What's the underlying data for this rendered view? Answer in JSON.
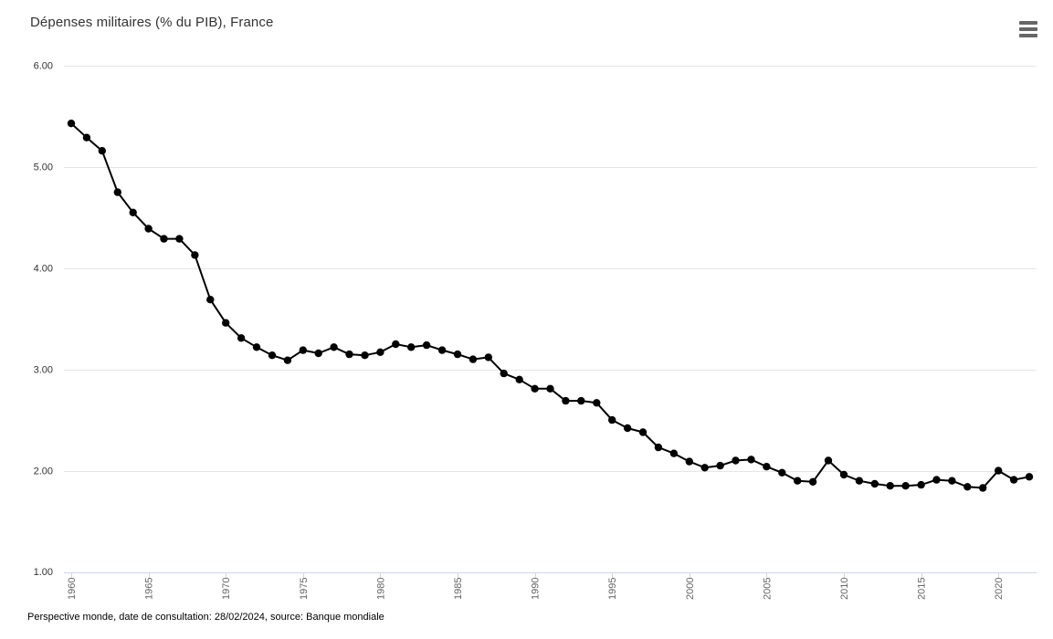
{
  "header": {
    "title": "Dépenses militaires (% du PIB), France"
  },
  "menu": {
    "icon": "hamburger-menu-icon"
  },
  "footer": {
    "caption": "Perspective monde, date de consultation: 28/02/2024, source: Banque mondiale"
  },
  "colors": {
    "background": "#ffffff",
    "series_line": "#000000",
    "marker_fill": "#000000",
    "gridline": "#e6e6e6",
    "axis_line": "#ccd6eb",
    "x_label": "#666666",
    "y_label": "#333333",
    "title_text": "#333333",
    "menu_icon": "#666666",
    "caption_text": "#000000"
  },
  "chart_data": {
    "type": "line",
    "title": "Dépenses militaires (% du PIB), France",
    "xlabel": "",
    "ylabel": "",
    "ylim": [
      1.0,
      6.0
    ],
    "y_ticks": [
      1.0,
      2.0,
      3.0,
      4.0,
      5.0,
      6.0
    ],
    "y_tick_labels": [
      "1.00",
      "2.00",
      "3.00",
      "4.00",
      "5.00",
      "6.00"
    ],
    "x_ticks": [
      1960,
      1965,
      1970,
      1975,
      1980,
      1985,
      1990,
      1995,
      2000,
      2005,
      2010,
      2015,
      2020
    ],
    "grid": true,
    "legend": false,
    "marker": "circle",
    "x": [
      1960,
      1961,
      1962,
      1963,
      1964,
      1965,
      1966,
      1967,
      1968,
      1969,
      1970,
      1971,
      1972,
      1973,
      1974,
      1975,
      1976,
      1977,
      1978,
      1979,
      1980,
      1981,
      1982,
      1983,
      1984,
      1985,
      1986,
      1987,
      1988,
      1989,
      1990,
      1991,
      1992,
      1993,
      1994,
      1995,
      1996,
      1997,
      1998,
      1999,
      2000,
      2001,
      2002,
      2003,
      2004,
      2005,
      2006,
      2007,
      2008,
      2009,
      2010,
      2011,
      2012,
      2013,
      2014,
      2015,
      2016,
      2017,
      2018,
      2019,
      2020,
      2021,
      2022
    ],
    "series": [
      {
        "name": "France",
        "color": "#000000",
        "values": [
          5.43,
          5.29,
          5.16,
          4.75,
          4.55,
          4.39,
          4.29,
          4.29,
          4.13,
          3.69,
          3.46,
          3.31,
          3.22,
          3.14,
          3.09,
          3.19,
          3.16,
          3.22,
          3.15,
          3.14,
          3.17,
          3.25,
          3.22,
          3.24,
          3.19,
          3.15,
          3.1,
          3.12,
          2.96,
          2.9,
          2.81,
          2.81,
          2.69,
          2.69,
          2.67,
          2.5,
          2.42,
          2.38,
          2.23,
          2.17,
          2.09,
          2.03,
          2.05,
          2.1,
          2.11,
          2.04,
          1.98,
          1.9,
          1.89,
          2.1,
          1.96,
          1.9,
          1.87,
          1.85,
          1.85,
          1.86,
          1.91,
          1.9,
          1.84,
          1.83,
          2.0,
          1.91,
          1.94
        ]
      }
    ]
  }
}
